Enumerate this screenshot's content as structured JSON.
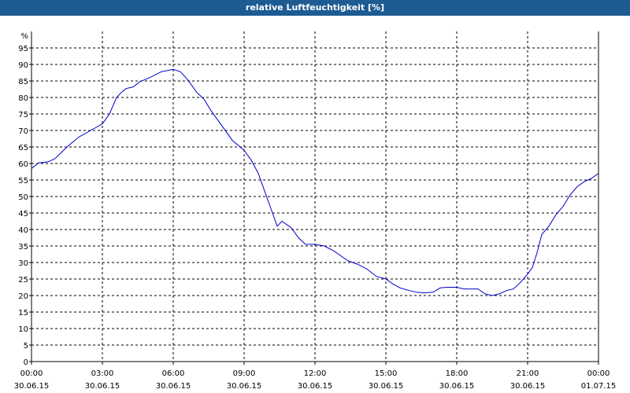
{
  "chart_data": {
    "type": "line",
    "title": "relative Luftfeuchtigkeit [%]",
    "y_unit": "%",
    "ylim": [
      0,
      100
    ],
    "y_ticks": [
      0,
      5,
      10,
      15,
      20,
      25,
      30,
      35,
      40,
      45,
      50,
      55,
      60,
      65,
      70,
      75,
      80,
      85,
      90,
      95
    ],
    "x_range_hours": [
      0,
      24
    ],
    "x_ticks": [
      {
        "hour": 0,
        "time": "00:00",
        "date": "30.06.15"
      },
      {
        "hour": 3,
        "time": "03:00",
        "date": "30.06.15"
      },
      {
        "hour": 6,
        "time": "06:00",
        "date": "30.06.15"
      },
      {
        "hour": 9,
        "time": "09:00",
        "date": "30.06.15"
      },
      {
        "hour": 12,
        "time": "12:00",
        "date": "30.06.15"
      },
      {
        "hour": 15,
        "time": "15:00",
        "date": "30.06.15"
      },
      {
        "hour": 18,
        "time": "18:00",
        "date": "30.06.15"
      },
      {
        "hour": 21,
        "time": "21:00",
        "date": "30.06.15"
      },
      {
        "hour": 24,
        "time": "00:00",
        "date": "01.07.15"
      }
    ],
    "grid": true,
    "line_color": "#0000cc",
    "series": [
      {
        "x": [
          0,
          0.3,
          0.7,
          1.0,
          1.5,
          2.0,
          2.5,
          3.0,
          3.3,
          3.6,
          3.8,
          4.0,
          4.3,
          4.6,
          5.0,
          5.5,
          6.0,
          6.3,
          6.6,
          7.0,
          7.3,
          7.6,
          8.0,
          8.5,
          9.0,
          9.3,
          9.6,
          9.9,
          10.2,
          10.4,
          10.6,
          10.8,
          11.0,
          11.3,
          11.6,
          12.0,
          12.4,
          12.8,
          13.1,
          13.4,
          13.8,
          14.2,
          14.6,
          15.0,
          15.3,
          15.6,
          16.0,
          16.3,
          16.6,
          17.0,
          17.3,
          17.6,
          18.0,
          18.3,
          18.6,
          18.9,
          19.2,
          19.5,
          19.8,
          20.1,
          20.4,
          20.7,
          21.0,
          21.2,
          21.4,
          21.6,
          21.9,
          22.2,
          22.5,
          22.8,
          23.1,
          23.4,
          23.7,
          24.0
        ],
        "values": [
          58.5,
          60.2,
          60.5,
          61.5,
          65.0,
          68.0,
          70.0,
          72.0,
          75.0,
          80.0,
          81.5,
          82.7,
          83.2,
          84.8,
          86.0,
          87.8,
          88.5,
          87.8,
          85.5,
          81.5,
          79.5,
          76.0,
          72.0,
          67.0,
          64.0,
          61.0,
          57.0,
          51.0,
          45.0,
          41.0,
          42.5,
          41.5,
          40.5,
          37.5,
          35.5,
          35.5,
          35.0,
          33.5,
          32.0,
          30.5,
          29.5,
          28.0,
          25.8,
          25.0,
          23.5,
          22.3,
          21.5,
          21.0,
          20.8,
          21.0,
          22.3,
          22.5,
          22.5,
          22.0,
          22.0,
          22.0,
          20.5,
          20.0,
          20.5,
          21.5,
          22.0,
          24.0,
          26.5,
          28.5,
          33.0,
          38.5,
          41.0,
          44.5,
          47.0,
          50.5,
          53.0,
          54.5,
          55.5,
          57.0
        ]
      }
    ]
  }
}
